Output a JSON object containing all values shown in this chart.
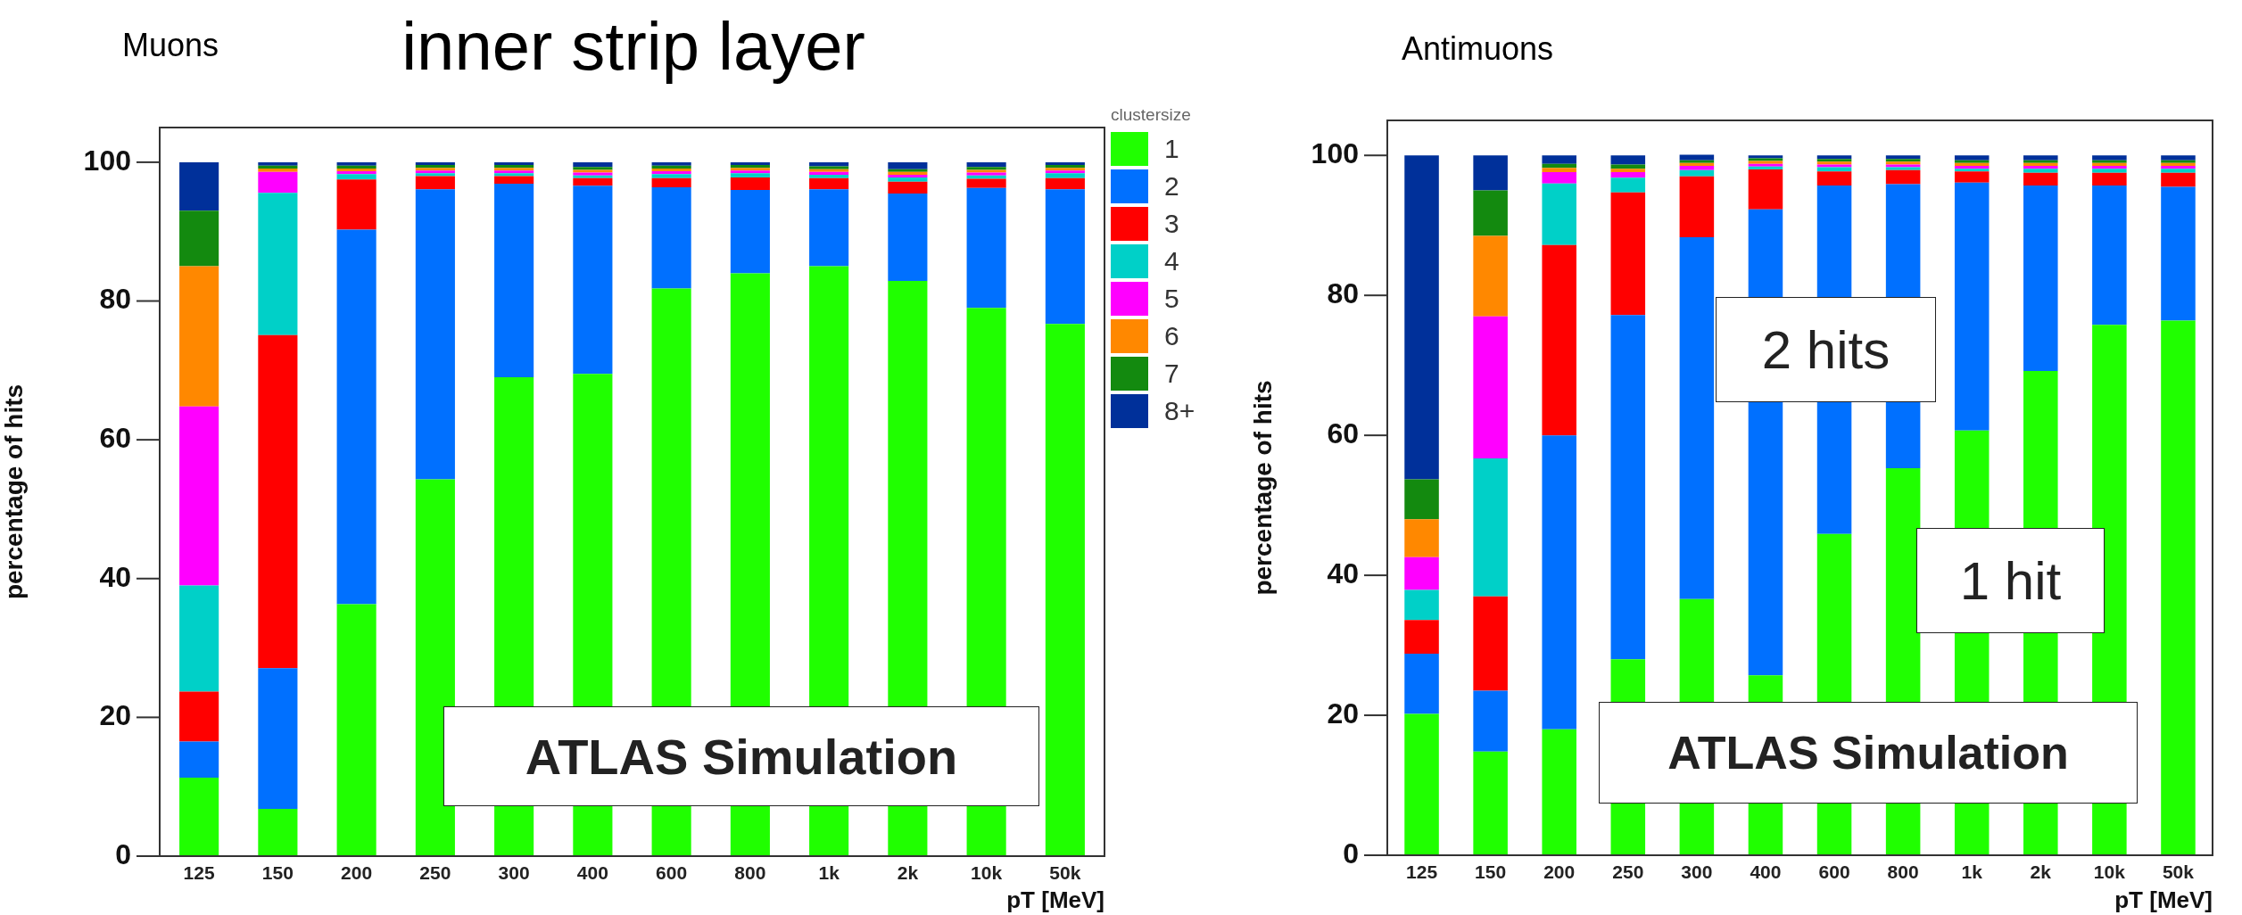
{
  "chart_data": [
    {
      "type": "bar",
      "title": "Muons",
      "subtitle": "inner strip layer",
      "xlabel": "pT [MeV]",
      "ylabel": "percentage of hits",
      "legend_title": "clustersize",
      "legend": "right",
      "stacked": true,
      "categories": [
        "125",
        "150",
        "200",
        "250",
        "300",
        "400",
        "600",
        "800",
        "1k",
        "2k",
        "10k",
        "50k"
      ],
      "ylim": [
        0,
        105
      ],
      "yticks": [
        0,
        20,
        40,
        60,
        80,
        100
      ],
      "series": [
        {
          "name": "1",
          "color": "#20ff00",
          "values": [
            11.3,
            6.8,
            36.3,
            54.3,
            69,
            69.5,
            81.8,
            84,
            85,
            82.9,
            79,
            76.7
          ]
        },
        {
          "name": "2",
          "color": "#0070ff",
          "values": [
            5.2,
            20.3,
            54,
            41.8,
            27.9,
            27.1,
            14.6,
            12,
            11.1,
            12.6,
            17.3,
            19.4
          ]
        },
        {
          "name": "3",
          "color": "#ff0000",
          "values": [
            7.2,
            48,
            7.2,
            1.9,
            1.1,
            1.1,
            1.3,
            1.8,
            1.6,
            1.7,
            1.3,
            1.6
          ]
        },
        {
          "name": "4",
          "color": "#00d0c8",
          "values": [
            15.3,
            20.5,
            0.8,
            0.4,
            0.4,
            0.4,
            0.6,
            0.6,
            0.5,
            0.6,
            0.5,
            0.7
          ]
        },
        {
          "name": "5",
          "color": "#ff00ff",
          "values": [
            25.8,
            3,
            0.4,
            0.4,
            0.4,
            0.4,
            0.4,
            0.4,
            0.4,
            0.4,
            0.4,
            0.4
          ]
        },
        {
          "name": "6",
          "color": "#ff8800",
          "values": [
            20.2,
            0.5,
            0.4,
            0.4,
            0.4,
            0.4,
            0.4,
            0.4,
            0.4,
            0.4,
            0.4,
            0.4
          ]
        },
        {
          "name": "7",
          "color": "#138a0f",
          "values": [
            8,
            0.4,
            0.4,
            0.4,
            0.4,
            0.4,
            0.4,
            0.4,
            0.4,
            0.4,
            0.4,
            0.4
          ]
        },
        {
          "name": "8+",
          "color": "#00309a",
          "values": [
            7,
            0.5,
            0.5,
            0.4,
            0.4,
            0.7,
            0.5,
            0.4,
            0.6,
            1.0,
            0.7,
            0.4
          ]
        }
      ],
      "annotations": [
        "ATLAS Simulation"
      ]
    },
    {
      "type": "bar",
      "title": "Antimuons",
      "xlabel": "pT [MeV]",
      "ylabel": "percentage of hits",
      "stacked": true,
      "categories": [
        "125",
        "150",
        "200",
        "250",
        "300",
        "400",
        "600",
        "800",
        "1k",
        "2k",
        "10k",
        "50k"
      ],
      "ylim": [
        0,
        105
      ],
      "yticks": [
        0,
        20,
        40,
        60,
        80,
        100
      ],
      "series": [
        {
          "color": "#20ff00",
          "values": [
            20.2,
            14.8,
            18,
            28,
            36.6,
            25.7,
            45.9,
            55.3,
            60.7,
            69.2,
            75.8,
            76.4
          ]
        },
        {
          "color": "#0070ff",
          "values": [
            8.6,
            8.7,
            42,
            49.2,
            51.7,
            66.6,
            49.8,
            40.6,
            35.4,
            26.5,
            19.9,
            19.1
          ]
        },
        {
          "color": "#ff0000",
          "values": [
            4.8,
            13.5,
            27.2,
            17.5,
            8.7,
            5.7,
            2,
            2,
            1.6,
            1.8,
            1.8,
            2
          ]
        },
        {
          "color": "#00d0c8",
          "values": [
            4.3,
            19.7,
            8.8,
            2.1,
            0.9,
            0.4,
            0.6,
            0.4,
            0.4,
            0.6,
            0.6,
            0.6
          ]
        },
        {
          "color": "#ff00ff",
          "values": [
            4.7,
            20.3,
            1.6,
            0.8,
            0.6,
            0.4,
            0.4,
            0.4,
            0.4,
            0.4,
            0.4,
            0.4
          ]
        },
        {
          "color": "#ff8800",
          "values": [
            5.4,
            11.5,
            0.6,
            0.5,
            0.4,
            0.4,
            0.4,
            0.4,
            0.4,
            0.4,
            0.4,
            0.4
          ]
        },
        {
          "color": "#138a0f",
          "values": [
            5.7,
            6.5,
            0.6,
            0.6,
            0.4,
            0.4,
            0.4,
            0.4,
            0.4,
            0.4,
            0.4,
            0.4
          ]
        },
        {
          "color": "#00309a",
          "values": [
            46.3,
            5,
            1.2,
            1.3,
            0.8,
            0.4,
            0.5,
            0.5,
            0.7,
            0.7,
            0.7,
            0.7
          ]
        }
      ],
      "annotations": [
        "ATLAS Simulation",
        "2 hits",
        "1 hit"
      ]
    }
  ]
}
